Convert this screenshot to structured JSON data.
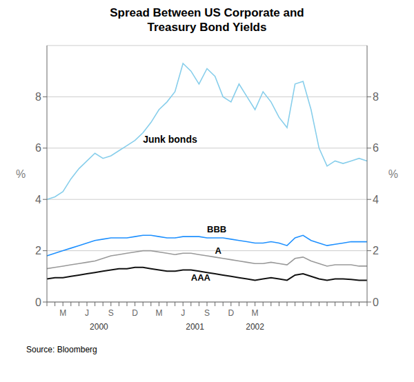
{
  "chart_data": {
    "type": "line",
    "title": "Spread Between US Corporate and\nTreasury Bond Yields",
    "ylabel": "%",
    "y2label": "%",
    "source": "Source: Bloomberg",
    "annotations": [
      "2000",
      "2001",
      "2002"
    ],
    "categories": [
      null,
      null,
      "M",
      null,
      null,
      "J",
      null,
      null,
      "S",
      null,
      null,
      "D",
      null,
      null,
      "M",
      null,
      null,
      "J",
      null,
      null,
      "S",
      null,
      null,
      "D",
      null,
      null,
      "M",
      null,
      null,
      null,
      null,
      null,
      null,
      null,
      null,
      null,
      null,
      null,
      null,
      null,
      null
    ],
    "ylim": [
      0,
      10
    ],
    "yticks": [
      0,
      2,
      4,
      6,
      8
    ],
    "y2lim": [
      0,
      10
    ],
    "y2ticks": [
      0,
      2,
      4,
      6,
      8
    ],
    "grid": true,
    "series": [
      {
        "name": "Junk bonds",
        "color": "#87ceeb",
        "values": [
          4.0,
          4.1,
          4.3,
          4.8,
          5.2,
          5.5,
          5.8,
          5.6,
          5.7,
          5.9,
          6.1,
          6.3,
          6.6,
          7.0,
          7.5,
          7.8,
          8.2,
          9.3,
          9.0,
          8.5,
          9.1,
          8.8,
          8.0,
          7.8,
          8.5,
          8.0,
          7.5,
          8.2,
          7.8,
          7.2,
          6.8,
          8.5,
          8.6,
          7.5,
          6.0,
          5.3,
          5.5,
          5.4,
          5.5,
          5.6,
          5.5
        ]
      },
      {
        "name": "BBB",
        "color": "#1e90ff",
        "values": [
          1.8,
          1.9,
          2.0,
          2.1,
          2.2,
          2.3,
          2.4,
          2.45,
          2.5,
          2.5,
          2.5,
          2.55,
          2.6,
          2.6,
          2.55,
          2.5,
          2.5,
          2.55,
          2.55,
          2.55,
          2.5,
          2.5,
          2.5,
          2.45,
          2.4,
          2.35,
          2.3,
          2.3,
          2.35,
          2.3,
          2.2,
          2.5,
          2.6,
          2.4,
          2.3,
          2.2,
          2.25,
          2.3,
          2.35,
          2.35,
          2.35
        ]
      },
      {
        "name": "A",
        "color": "#999999",
        "values": [
          1.3,
          1.35,
          1.4,
          1.45,
          1.5,
          1.55,
          1.6,
          1.7,
          1.8,
          1.85,
          1.9,
          1.95,
          2.0,
          2.0,
          1.95,
          1.9,
          1.85,
          1.9,
          1.9,
          1.85,
          1.8,
          1.75,
          1.7,
          1.65,
          1.6,
          1.55,
          1.5,
          1.5,
          1.55,
          1.5,
          1.45,
          1.7,
          1.75,
          1.6,
          1.5,
          1.4,
          1.45,
          1.45,
          1.45,
          1.4,
          1.4
        ]
      },
      {
        "name": "AAA",
        "color": "#111111",
        "values": [
          0.9,
          0.95,
          0.95,
          1.0,
          1.05,
          1.1,
          1.15,
          1.2,
          1.25,
          1.3,
          1.3,
          1.35,
          1.35,
          1.3,
          1.25,
          1.2,
          1.2,
          1.25,
          1.25,
          1.2,
          1.15,
          1.1,
          1.05,
          1.0,
          0.95,
          0.9,
          0.85,
          0.9,
          0.95,
          0.9,
          0.85,
          1.05,
          1.1,
          1.0,
          0.9,
          0.85,
          0.9,
          0.9,
          0.88,
          0.85,
          0.85
        ]
      }
    ]
  }
}
